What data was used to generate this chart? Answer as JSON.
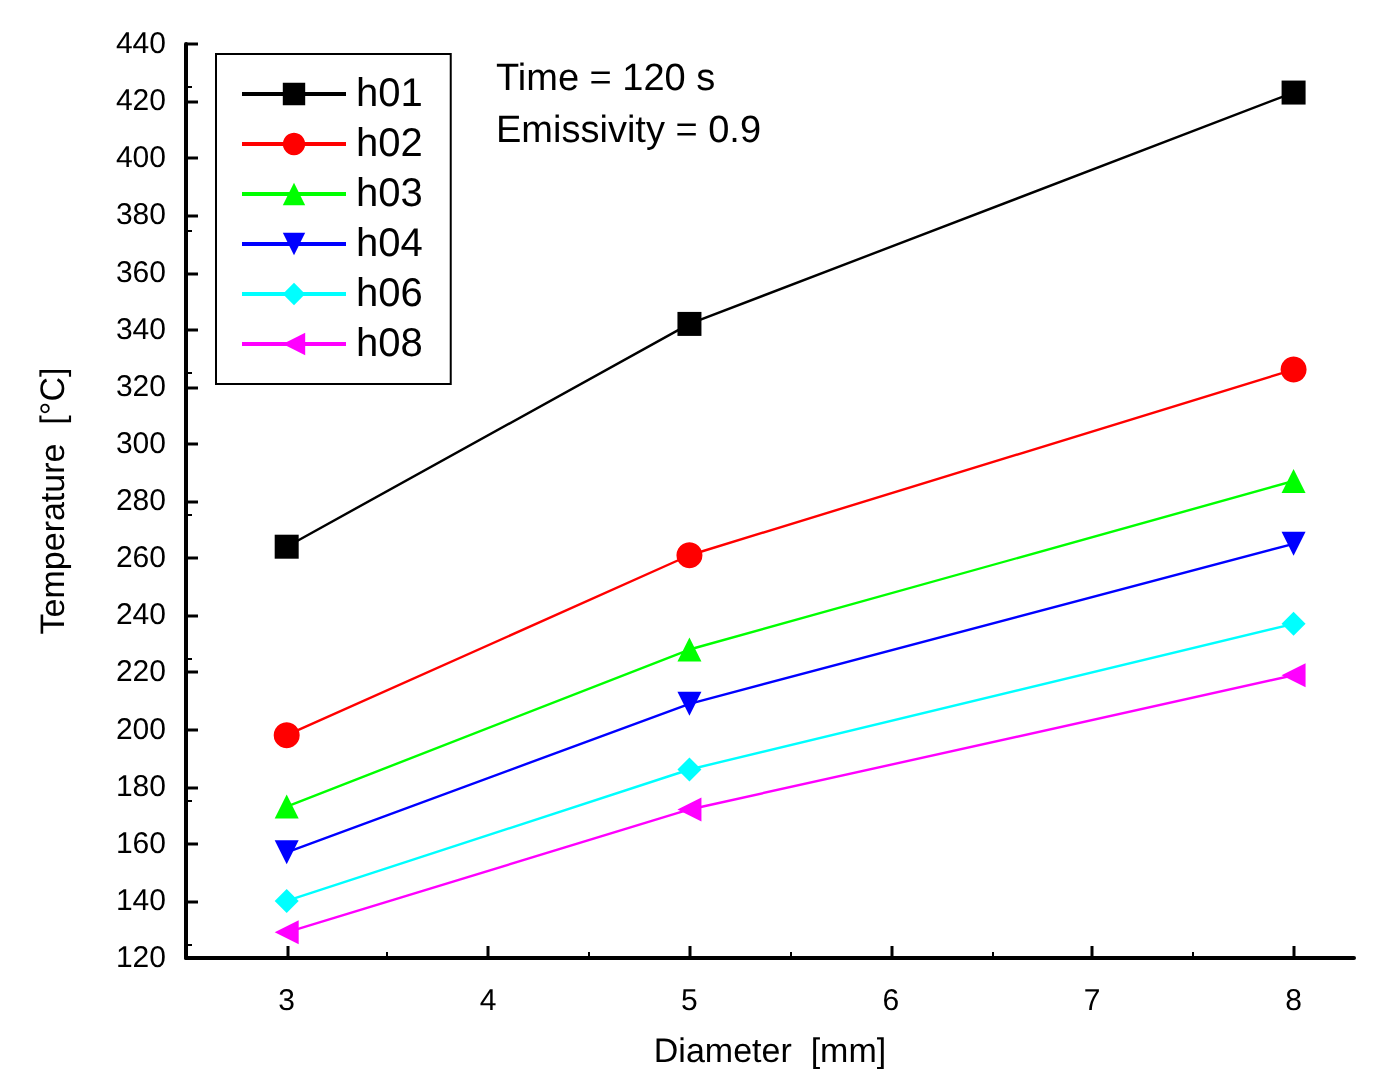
{
  "chart_data": {
    "type": "line",
    "xlabel": "Diameter  [mm]",
    "ylabel": "Temperature  [°C]",
    "annotations": [
      "Time = 120 s",
      "Emissivity = 0.9"
    ],
    "x": [
      3,
      5,
      8
    ],
    "series": [
      {
        "name": "h01",
        "color": "#000000",
        "marker": "square",
        "values": [
          264,
          342,
          423
        ]
      },
      {
        "name": "h02",
        "color": "#ff0000",
        "marker": "circle",
        "values": [
          198,
          261,
          326
        ]
      },
      {
        "name": "h03",
        "color": "#00ff00",
        "marker": "triangle",
        "values": [
          173,
          228,
          287
        ]
      },
      {
        "name": "h04",
        "color": "#0000ff",
        "marker": "triangle-down",
        "values": [
          157,
          209,
          265
        ]
      },
      {
        "name": "h06",
        "color": "#00ffff",
        "marker": "diamond",
        "values": [
          140,
          186,
          237
        ]
      },
      {
        "name": "h08",
        "color": "#ff00ff",
        "marker": "triangle-left",
        "values": [
          129,
          172,
          219
        ]
      }
    ],
    "xlim": [
      2.5,
      8.3
    ],
    "xticks": [
      3,
      4,
      5,
      6,
      7,
      8
    ],
    "ylim": [
      120,
      440
    ],
    "yticks": [
      120,
      140,
      160,
      180,
      200,
      220,
      240,
      260,
      280,
      300,
      320,
      340,
      360,
      380,
      400,
      420,
      440
    ],
    "grid": false,
    "legend": "top left",
    "line_style": "solid"
  }
}
